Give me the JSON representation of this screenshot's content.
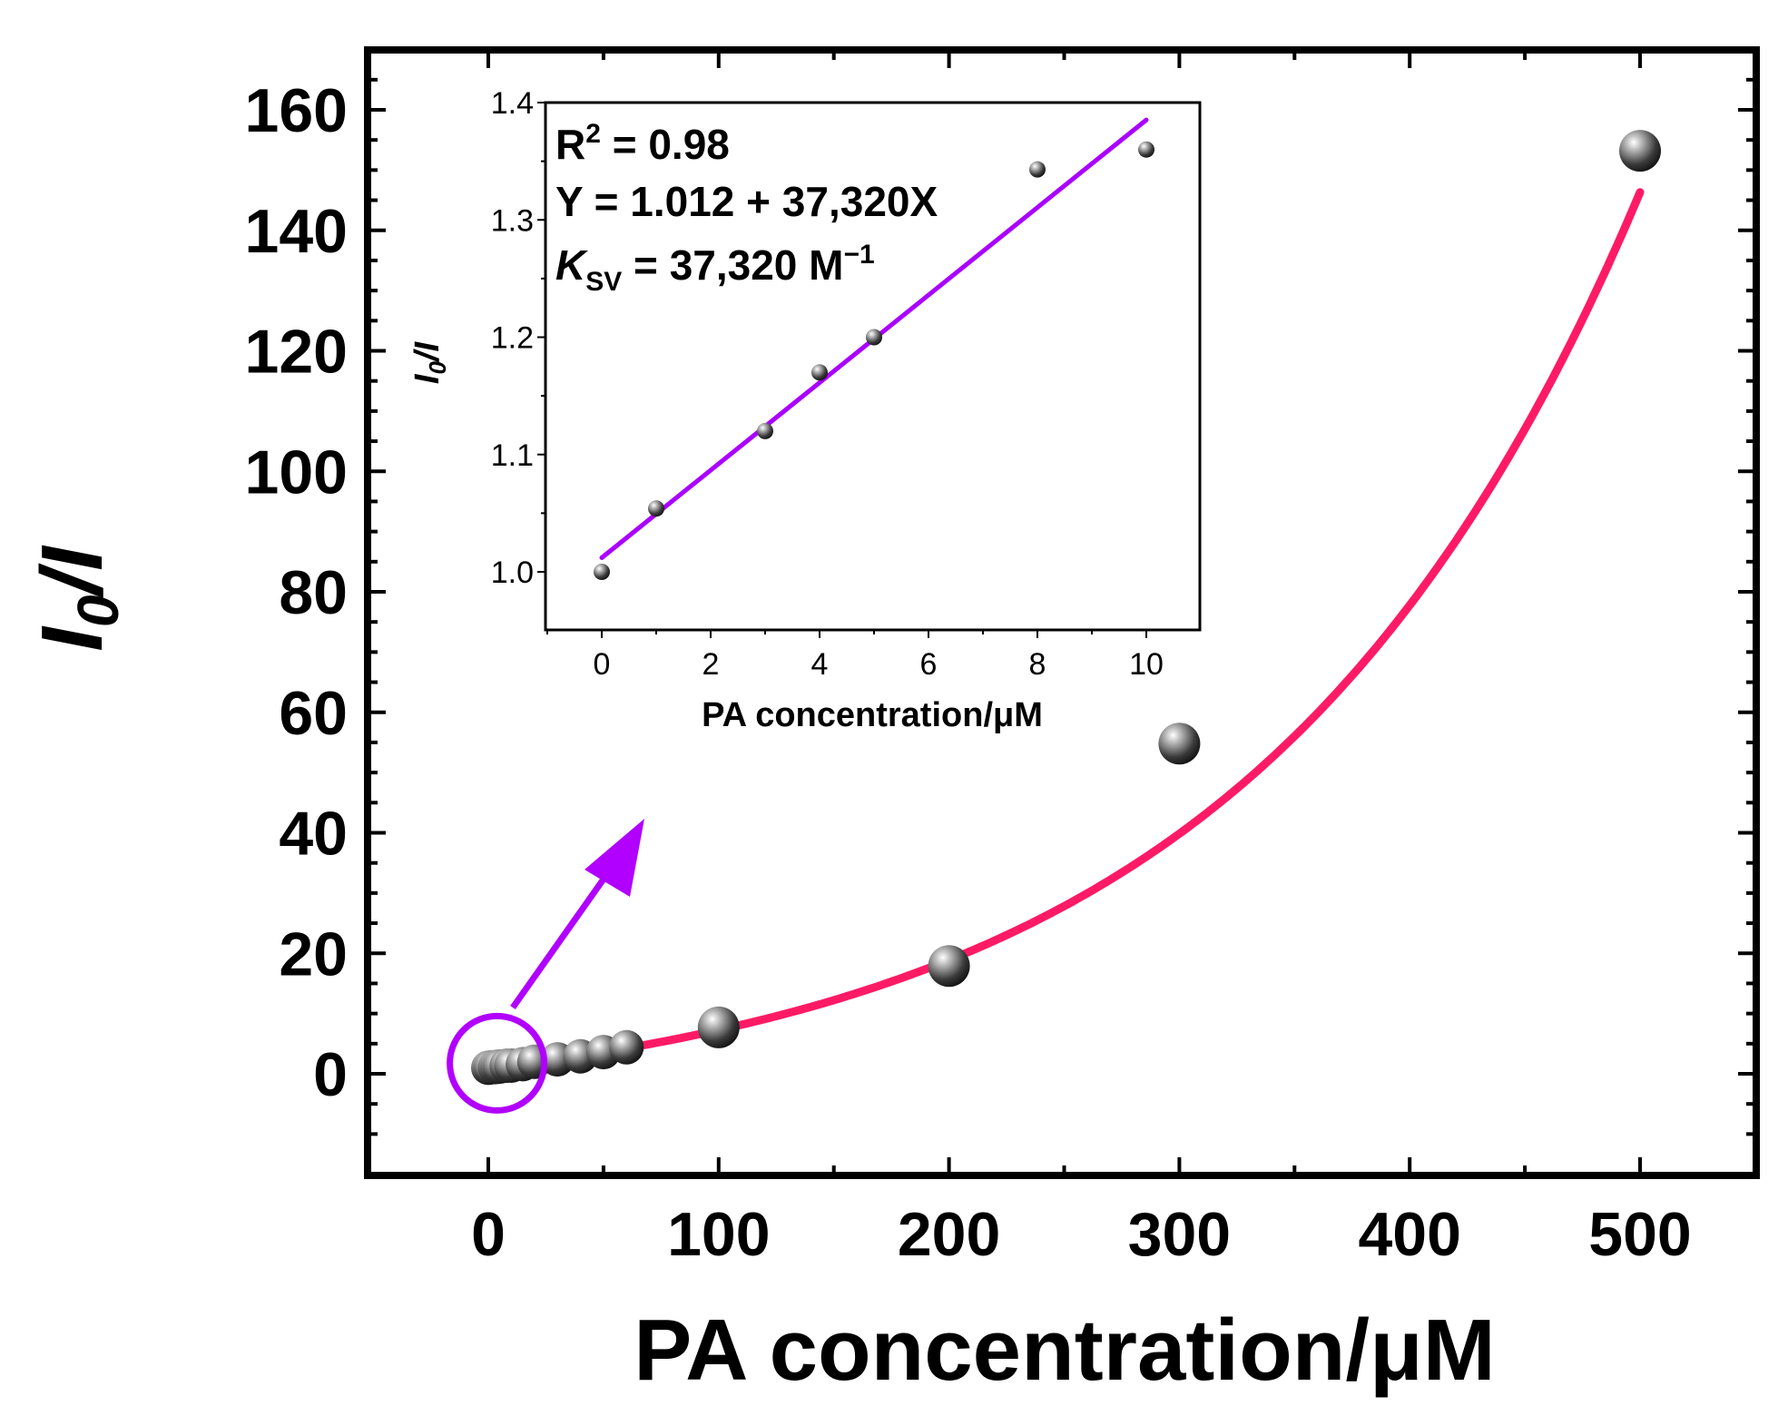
{
  "chart_data": [
    {
      "type": "scatter",
      "role": "main",
      "xlabel": "PA concentration/μM",
      "ylabel_main": "I",
      "ylabel_sub": "0",
      "ylabel_rest": "/I",
      "xlim": [
        -50,
        550
      ],
      "ylim": [
        -15,
        170
      ],
      "xticks": [
        0,
        100,
        200,
        300,
        400,
        500
      ],
      "yticks": [
        0,
        20,
        40,
        60,
        80,
        100,
        120,
        140,
        160
      ],
      "series": [
        {
          "name": "data",
          "x": [
            0,
            1,
            3,
            4,
            5,
            8,
            10,
            15,
            20,
            30,
            40,
            50,
            60,
            100,
            200,
            300,
            500
          ],
          "y": [
            1.0,
            1.05,
            1.12,
            1.17,
            1.2,
            1.34,
            1.36,
            1.6,
            2.0,
            2.4,
            2.9,
            3.6,
            4.4,
            7.7,
            17.9,
            54.8,
            153.2
          ]
        },
        {
          "name": "exponential fit",
          "color": "#ff1a66",
          "fit": "y = 7.95*exp(0.00592x) - 7.1"
        }
      ],
      "annotation": {
        "type": "circle-with-arrow",
        "color": "#b100ff",
        "target_x": 3,
        "target_y": 1.0
      }
    },
    {
      "type": "scatter",
      "role": "inset",
      "xlabel": "PA concentration/μM",
      "ylabel_main": "I",
      "ylabel_sub": "0",
      "ylabel_rest": "/I",
      "xlim": [
        -1,
        11
      ],
      "ylim": [
        0.95,
        1.4
      ],
      "xticks": [
        0,
        2,
        4,
        6,
        8,
        10
      ],
      "yticks": [
        1.0,
        1.1,
        1.2,
        1.3,
        1.4
      ],
      "series": [
        {
          "name": "data",
          "x": [
            0,
            1,
            3,
            4,
            5,
            8,
            10
          ],
          "y": [
            1.0,
            1.054,
            1.12,
            1.17,
            1.2,
            1.343,
            1.36
          ]
        },
        {
          "name": "linear fit",
          "color": "#aa00ff",
          "x_range": [
            0,
            10
          ],
          "intercept": 1.012,
          "slope": 0.03732
        }
      ],
      "annotations": {
        "r2_prefix": "R",
        "r2_sup": "2",
        "r2_value": " = 0.98",
        "equation": "Y = 1.012 + 37,320X",
        "ksv_k": "K",
        "ksv_sub": "SV",
        "ksv_value": " = 37,320 M",
        "ksv_unit_sup": "−1"
      }
    }
  ]
}
